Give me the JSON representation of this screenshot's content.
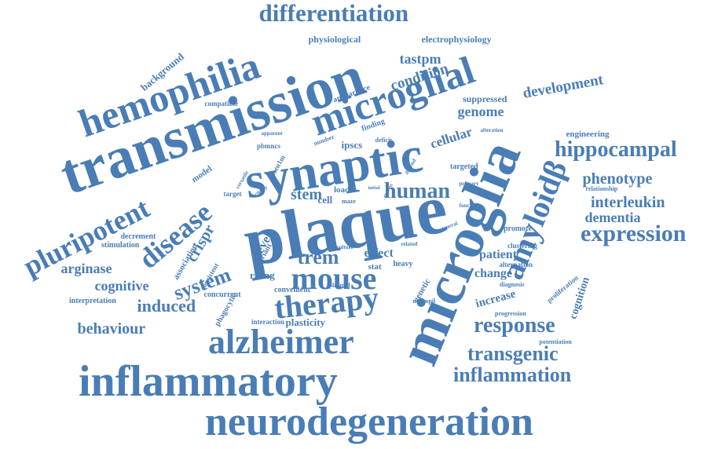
{
  "color": "#4a7db5",
  "words": [
    "differentiation",
    "hemophilia",
    "transmission",
    "microglial",
    "synaptic",
    "plaque",
    "microglia",
    "pluripotent",
    "disease",
    "amyloidβ",
    "mouse",
    "therapy",
    "alzheimer",
    "inflammatory",
    "neurodegeneration",
    "expression",
    "hippocampal",
    "human",
    "trem",
    "system",
    "response",
    "transgenic",
    "inflammation",
    "induced",
    "behaviour",
    "cognitive",
    "arginase",
    "crispr",
    "stem",
    "development",
    "condition",
    "tastpm",
    "genome",
    "cellular",
    "phenotype",
    "interleukin",
    "dementia",
    "patient",
    "change",
    "increase",
    "cognition",
    "effect",
    "level",
    "rising",
    "plasticity",
    "background",
    "physiological",
    "electrophysiology",
    "suppressed",
    "engineering",
    "association",
    "stimulation",
    "decrement",
    "interpretation",
    "concurrent",
    "phagocytic",
    "interaction",
    "convenient",
    "plasmid",
    "stat",
    "heavy",
    "genetic",
    "targeted",
    "promote",
    "clustering",
    "alternation",
    "diagnosis",
    "progression",
    "potentiation",
    "proliferation",
    "neuropil",
    "ipscs",
    "deficit",
    "finding",
    "appearance",
    "compatible",
    "pbmncs",
    "apparent",
    "number",
    "model",
    "target",
    "versatile",
    "activity",
    "cell",
    "load",
    "maze",
    "relationship",
    "alteration",
    "primary",
    "function",
    "culture",
    "related",
    "result",
    "variant",
    "general",
    "consistent",
    "psen1m",
    "depend",
    "initial",
    "express"
  ]
}
